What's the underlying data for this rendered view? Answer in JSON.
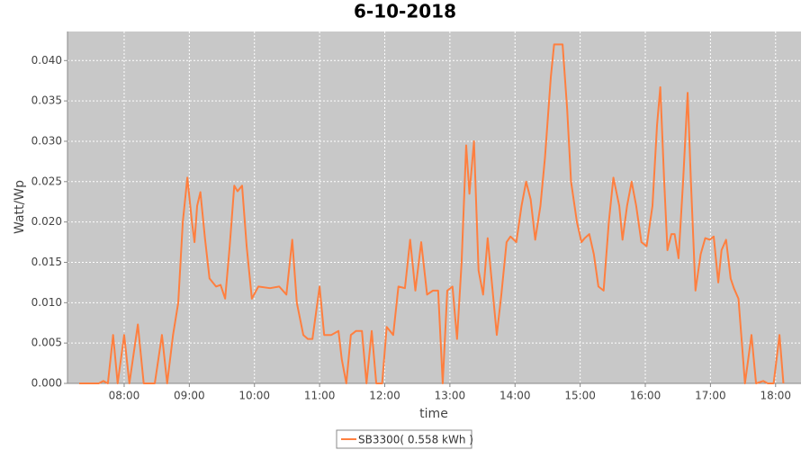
{
  "chart_data": {
    "type": "line",
    "title": "6-10-2018",
    "x_label": "time",
    "y_label": "Watt/Wp",
    "x": [
      7.31,
      7.61,
      7.68,
      7.75,
      7.83,
      7.9,
      8.0,
      8.08,
      8.21,
      8.3,
      8.47,
      8.58,
      8.66,
      8.75,
      8.83,
      8.9,
      8.97,
      9.04,
      9.08,
      9.12,
      9.17,
      9.24,
      9.31,
      9.41,
      9.48,
      9.55,
      9.62,
      9.69,
      9.74,
      9.81,
      9.88,
      9.96,
      10.06,
      10.24,
      10.38,
      10.49,
      10.58,
      10.65,
      10.75,
      10.82,
      10.89,
      11.0,
      11.07,
      11.18,
      11.29,
      11.34,
      11.41,
      11.48,
      11.56,
      11.65,
      11.72,
      11.8,
      11.87,
      11.96,
      12.03,
      12.13,
      12.21,
      12.31,
      12.39,
      12.47,
      12.56,
      12.65,
      12.74,
      12.82,
      12.89,
      12.96,
      13.04,
      13.11,
      13.18,
      13.25,
      13.3,
      13.37,
      13.44,
      13.51,
      13.58,
      13.65,
      13.72,
      13.79,
      13.87,
      13.93,
      14.02,
      14.1,
      14.17,
      14.24,
      14.31,
      14.39,
      14.46,
      14.55,
      14.6,
      14.66,
      14.73,
      14.8,
      14.86,
      14.95,
      15.02,
      15.07,
      15.14,
      15.21,
      15.28,
      15.36,
      15.44,
      15.51,
      15.6,
      15.65,
      15.72,
      15.79,
      15.86,
      15.94,
      16.02,
      16.11,
      16.18,
      16.23,
      16.29,
      16.34,
      16.4,
      16.45,
      16.51,
      16.58,
      16.65,
      16.7,
      16.77,
      16.85,
      16.92,
      16.99,
      17.05,
      17.12,
      17.17,
      17.24,
      17.31,
      17.36,
      17.43,
      17.53,
      17.63,
      17.7,
      17.81,
      17.88,
      17.97,
      18.06,
      18.12
    ],
    "series": [
      {
        "name": "SB3300( 0.558 kWh )",
        "color": "#ff7f3f",
        "values": [
          0,
          0,
          0.0003,
          0,
          0.006,
          0,
          0.006,
          0,
          0.0073,
          0,
          0,
          0.006,
          0,
          0.006,
          0.01,
          0.02,
          0.0255,
          0.02,
          0.0175,
          0.022,
          0.0237,
          0.018,
          0.013,
          0.012,
          0.0122,
          0.0105,
          0.017,
          0.0245,
          0.0238,
          0.0245,
          0.017,
          0.0105,
          0.012,
          0.0118,
          0.012,
          0.011,
          0.0178,
          0.01,
          0.006,
          0.0055,
          0.0055,
          0.012,
          0.006,
          0.006,
          0.0065,
          0.003,
          0,
          0.006,
          0.0065,
          0.0065,
          0,
          0.0065,
          0,
          0,
          0.007,
          0.006,
          0.012,
          0.0118,
          0.0178,
          0.0115,
          0.0175,
          0.011,
          0.0115,
          0.0115,
          0,
          0.0115,
          0.012,
          0.0055,
          0.015,
          0.0295,
          0.0235,
          0.03,
          0.014,
          0.011,
          0.018,
          0.012,
          0.006,
          0.011,
          0.0175,
          0.0182,
          0.0175,
          0.022,
          0.025,
          0.0228,
          0.0178,
          0.022,
          0.028,
          0.038,
          0.042,
          0.042,
          0.042,
          0.034,
          0.025,
          0.02,
          0.0175,
          0.018,
          0.0185,
          0.016,
          0.012,
          0.0115,
          0.02,
          0.0255,
          0.022,
          0.0178,
          0.022,
          0.025,
          0.022,
          0.0175,
          0.017,
          0.022,
          0.032,
          0.0367,
          0.025,
          0.0165,
          0.0185,
          0.0185,
          0.0155,
          0.025,
          0.036,
          0.025,
          0.0115,
          0.016,
          0.018,
          0.0178,
          0.0182,
          0.0125,
          0.0165,
          0.0178,
          0.013,
          0.0118,
          0.0105,
          0,
          0.006,
          0,
          0.0003,
          0,
          0,
          0.006,
          0
        ]
      }
    ],
    "xlim": [
      7.13,
      18.39
    ],
    "xticks": [
      {
        "value": 8,
        "label": "08:00"
      },
      {
        "value": 9,
        "label": "09:00"
      },
      {
        "value": 10,
        "label": "10:00"
      },
      {
        "value": 11,
        "label": "11:00"
      },
      {
        "value": 12,
        "label": "12:00"
      },
      {
        "value": 13,
        "label": "13:00"
      },
      {
        "value": 14,
        "label": "14:00"
      },
      {
        "value": 15,
        "label": "15:00"
      },
      {
        "value": 16,
        "label": "16:00"
      },
      {
        "value": 17,
        "label": "17:00"
      },
      {
        "value": 18,
        "label": "18:00"
      }
    ],
    "ylim": [
      0,
      0.0436
    ],
    "yticks": [
      {
        "value": 0,
        "label": "0.000"
      },
      0.005,
      {
        "value": 0.01,
        "label": "0.010"
      },
      0.015,
      {
        "value": 0.02,
        "label": "0.020"
      },
      0.025,
      {
        "value": 0.03,
        "label": "0.030"
      },
      0.035,
      {
        "value": 0.04,
        "label": "0.040"
      }
    ],
    "grid": true
  }
}
